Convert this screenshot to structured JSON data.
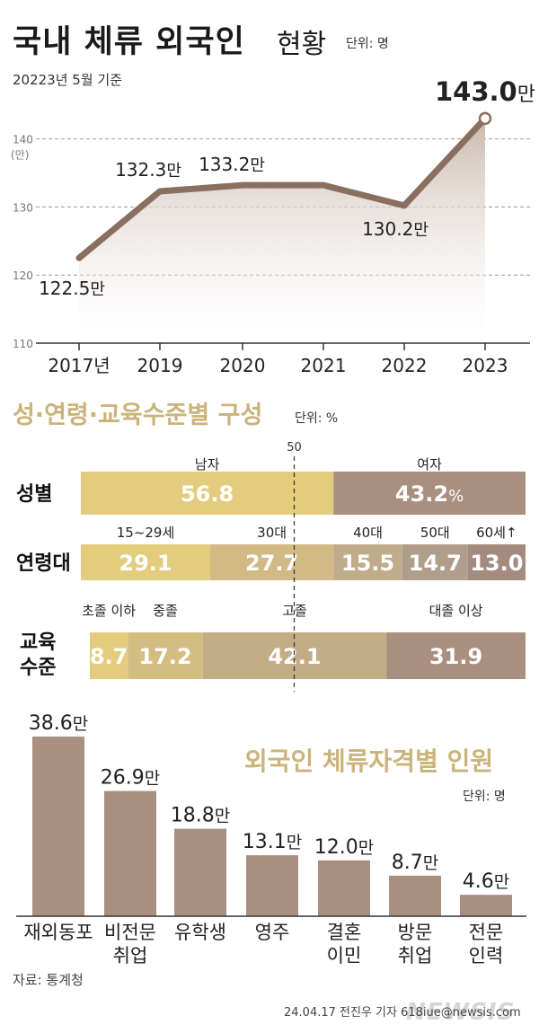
{
  "title": {
    "main": "국내 체류 외국인",
    "sub": "현황",
    "unit": "단위: 명"
  },
  "subtitle": "20223년 5월 기준",
  "chart_data": [
    {
      "type": "area",
      "title": "국내 체류 외국인 현황",
      "unit": "단위: 명",
      "ylabel": "(만)",
      "ylim": [
        110,
        143
      ],
      "yticks": [
        "110",
        "120",
        "130",
        "140"
      ],
      "x": [
        "2017년",
        "2019",
        "2020",
        "2021",
        "2022",
        "2023"
      ],
      "values": [
        122.5,
        132.3,
        133.2,
        133.2,
        130.2,
        143.0
      ],
      "data_labels": [
        {
          "num": "122.5",
          "suffix": "만"
        },
        {
          "num": "132.3",
          "suffix": "만"
        },
        {
          "num": "133.2",
          "suffix": "만"
        },
        null,
        {
          "num": "130.2",
          "suffix": "만"
        },
        {
          "num": "143.0",
          "suffix": "만"
        }
      ],
      "colors": {
        "line": "#8a6f61",
        "area_top": "#c9b8ad",
        "area_bottom": "#ffffff"
      }
    },
    {
      "type": "bar",
      "stacked": "horizontal-100%",
      "title": "성·연령·교육수준별 구성",
      "unit": "단위: %",
      "midline_label": "50",
      "rows": [
        {
          "label": "성별",
          "segments": [
            {
              "name": "남자",
              "value": 56.8,
              "label": "56.8",
              "color": "#e3cc7e"
            },
            {
              "name": "여자",
              "value": 43.2,
              "label": "43.2",
              "suffix": "%",
              "color": "#a98f80"
            }
          ]
        },
        {
          "label": "연령대",
          "segments": [
            {
              "name": "15~29세",
              "value": 29.1,
              "label": "29.1",
              "color": "#e3cc7e"
            },
            {
              "name": "30대",
              "value": 27.7,
              "label": "27.7",
              "color": "#d1ba84"
            },
            {
              "name": "40대",
              "value": 15.5,
              "label": "15.5",
              "color": "#c0ac8b"
            },
            {
              "name": "50대",
              "value": 14.7,
              "label": "14.7",
              "color": "#b09e8c"
            },
            {
              "name": "60세↑",
              "value": 13.0,
              "label": "13.0",
              "color": "#a38c7f"
            }
          ]
        },
        {
          "label": "교육 수준",
          "label_lines": [
            "교육",
            "수준"
          ],
          "segments": [
            {
              "name": "초졸 이하",
              "value": 8.7,
              "label": "8.7",
              "color": "#e3cc7e"
            },
            {
              "name": "중졸",
              "value": 17.2,
              "label": "17.2",
              "color": "#d4bd80"
            },
            {
              "name": "고졸",
              "value": 42.1,
              "label": "42.1",
              "color": "#c2ad86"
            },
            {
              "name": "대졸 이상",
              "value": 31.9,
              "label": "31.9",
              "color": "#a98f80"
            }
          ]
        }
      ]
    },
    {
      "type": "bar",
      "title": "외국인 체류자격별 인원",
      "unit": "단위: 명",
      "categories": [
        [
          "재외동포"
        ],
        [
          "비전문",
          "취업"
        ],
        [
          "유학생"
        ],
        [
          "영주"
        ],
        [
          "결혼",
          "이민"
        ],
        [
          "방문",
          "취업"
        ],
        [
          "전문",
          "인력"
        ]
      ],
      "values": [
        38.6,
        26.9,
        18.8,
        13.1,
        12.0,
        8.7,
        4.6
      ],
      "value_labels": [
        "38.6만",
        "26.9만",
        "18.8만",
        "13.1만",
        "12.0만",
        "8.7만",
        "4.6만"
      ],
      "ylim": [
        0,
        38.6
      ],
      "color": "#a98f80"
    }
  ],
  "source": "자료: 통계청",
  "credit": "24.04.17 전진우 기자 618iue@newsis.com",
  "watermark": "NEWSIS"
}
